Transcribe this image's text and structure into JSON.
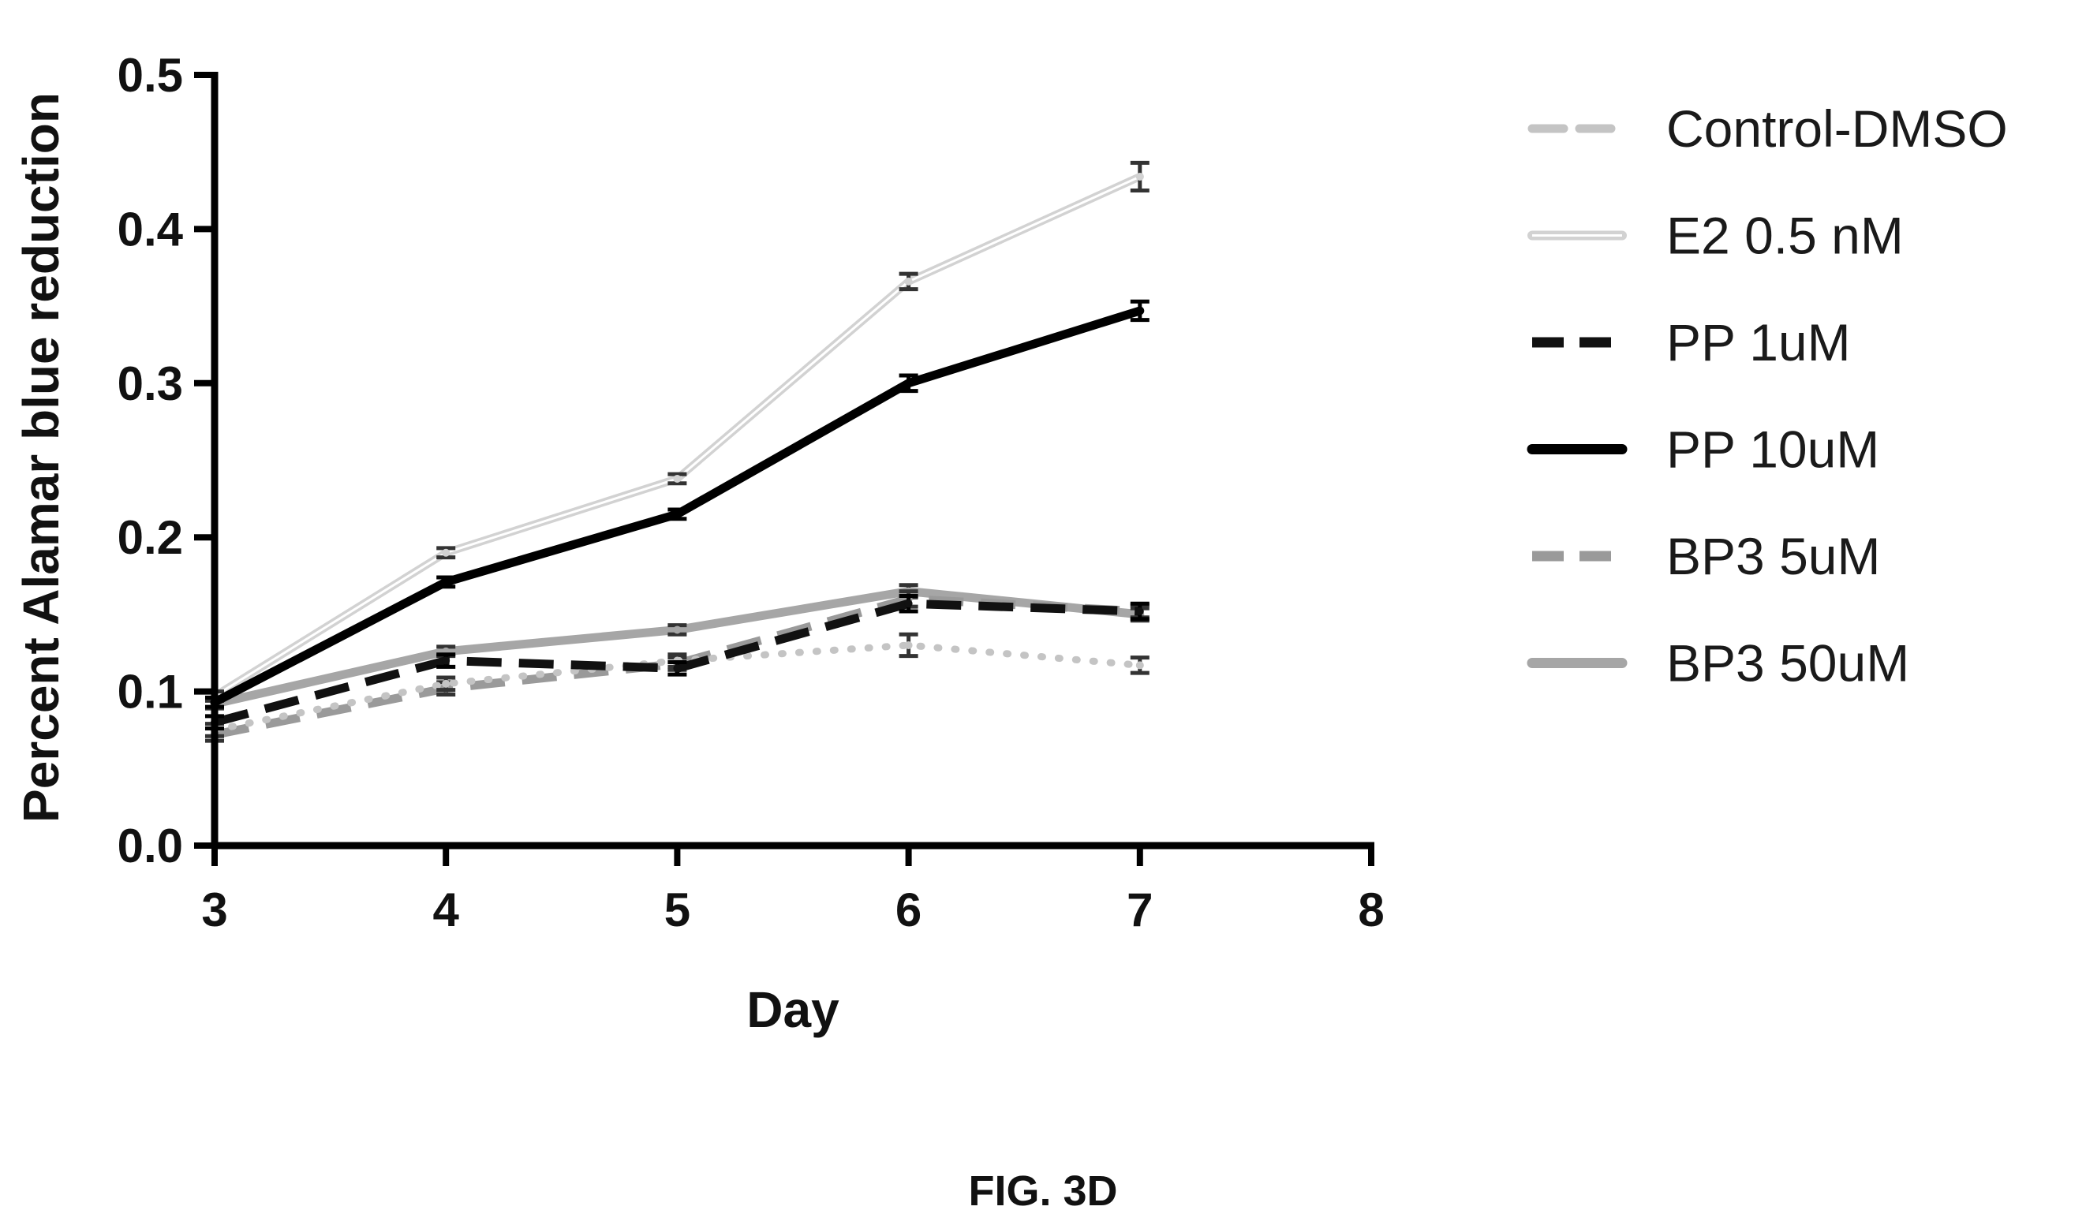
{
  "chart_data": {
    "type": "line",
    "xlabel": "Day",
    "ylabel": "Percent Alamar blue reduction",
    "xlim": [
      3,
      8
    ],
    "ylim": [
      0,
      0.5
    ],
    "xticks": [
      3,
      4,
      5,
      6,
      7,
      8
    ],
    "yticks": [
      "0.0",
      "0.1",
      "0.2",
      "0.3",
      "0.4",
      "0.5"
    ],
    "grid": false,
    "legend_position": "right",
    "caption": "FIG. 3D",
    "x": [
      3,
      4,
      5,
      6,
      7
    ],
    "series": [
      {
        "name": "Control-DMSO",
        "values": [
          0.075,
          0.105,
          0.12,
          0.13,
          0.117
        ],
        "errors": [
          0.004,
          0.004,
          0.004,
          0.007,
          0.005
        ],
        "color": "#c4c4c4",
        "style": "dotted"
      },
      {
        "name": "E2 0.5 nM",
        "values": [
          0.097,
          0.19,
          0.238,
          0.366,
          0.434
        ],
        "errors": [
          0.003,
          0.003,
          0.003,
          0.005,
          0.009
        ],
        "color": "#d2d2d2",
        "style": "double"
      },
      {
        "name": "PP 1uM",
        "values": [
          0.08,
          0.12,
          0.115,
          0.157,
          0.152
        ],
        "errors": [
          0.004,
          0.004,
          0.004,
          0.005,
          0.005
        ],
        "color": "#111111",
        "style": "dashed"
      },
      {
        "name": "PP 10uM",
        "values": [
          0.093,
          0.171,
          0.215,
          0.3,
          0.347
        ],
        "errors": [
          0.003,
          0.003,
          0.003,
          0.005,
          0.006
        ],
        "color": "#000000",
        "style": "solid"
      },
      {
        "name": "BP3 5uM",
        "values": [
          0.072,
          0.102,
          0.118,
          0.16,
          0.152
        ],
        "errors": [
          0.004,
          0.004,
          0.004,
          0.005,
          0.004
        ],
        "color": "#9a9a9a",
        "style": "dashed"
      },
      {
        "name": "BP3 50uM",
        "values": [
          0.092,
          0.126,
          0.14,
          0.165,
          0.15
        ],
        "errors": [
          0.003,
          0.003,
          0.003,
          0.004,
          0.004
        ],
        "color": "#a6a6a6",
        "style": "solid"
      }
    ]
  }
}
